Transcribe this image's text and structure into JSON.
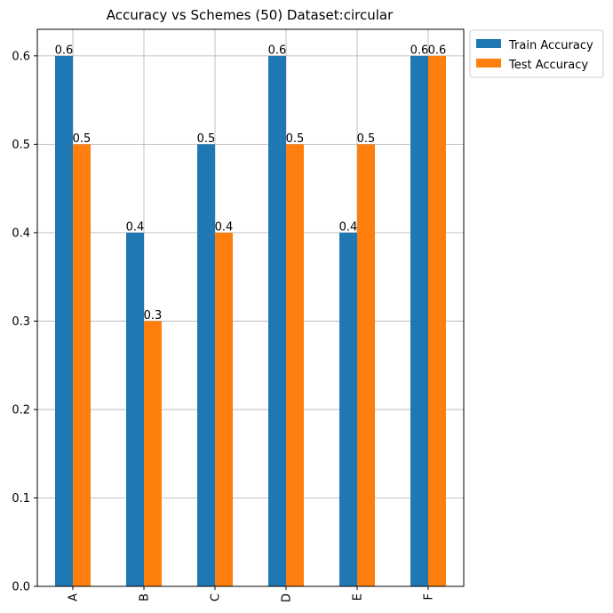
{
  "chart_data": {
    "type": "bar",
    "title": "Accuracy vs Schemes (50) Dataset:circular",
    "xlabel": "",
    "ylabel": "",
    "categories": [
      "A",
      "B",
      "C",
      "D",
      "E",
      "F"
    ],
    "series": [
      {
        "name": "Train Accuracy",
        "color": "#1f77b4",
        "values": [
          0.6,
          0.4,
          0.5,
          0.6,
          0.4,
          0.6
        ]
      },
      {
        "name": "Test Accuracy",
        "color": "#ff7f0e",
        "values": [
          0.5,
          0.3,
          0.4,
          0.5,
          0.5,
          0.6
        ]
      }
    ],
    "data_labels": [
      [
        "0.6",
        "0.4",
        "0.5",
        "0.6",
        "0.4",
        "0.6"
      ],
      [
        "0.5",
        "0.3",
        "0.4",
        "0.5",
        "0.5",
        "0.6"
      ]
    ],
    "ylim": [
      0,
      0.63
    ],
    "yticks": [
      "0.0",
      "0.1",
      "0.2",
      "0.3",
      "0.4",
      "0.5",
      "0.6"
    ],
    "ytick_values": [
      0,
      0.1,
      0.2,
      0.3,
      0.4,
      0.5,
      0.6
    ],
    "grid": true,
    "legend_position": "outside top-right"
  }
}
